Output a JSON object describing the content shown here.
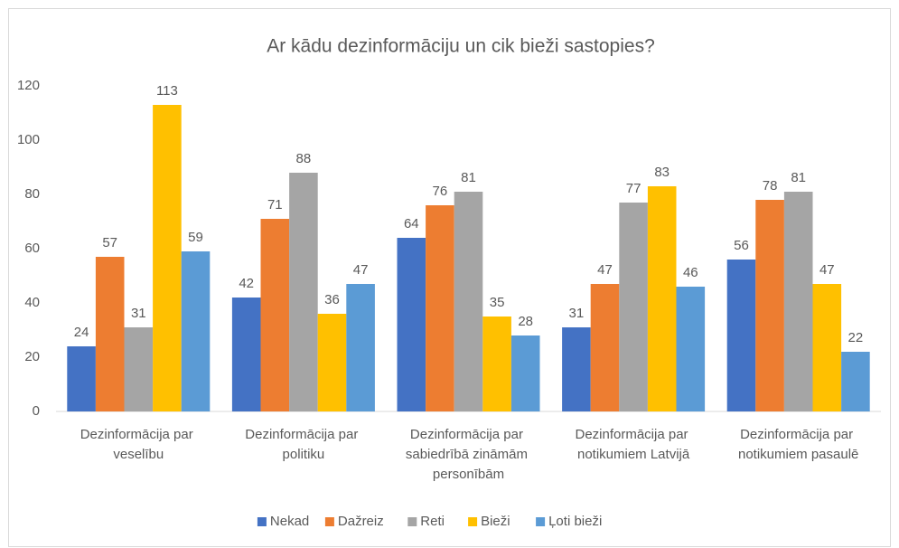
{
  "chart_data": {
    "type": "bar",
    "title": "Ar kādu dezinformāciju un cik bieži sastopies?",
    "categories": [
      "Dezinformācija par veselību",
      "Dezinformācija par politiku",
      "Dezinformācija par sabiedrībā zināmām personībām",
      "Dezinformācija par notikumiem Latvijā",
      "Dezinformācija par notikumiem pasaulē"
    ],
    "series": [
      {
        "name": "Nekad",
        "color": "#4472c4",
        "values": [
          24,
          42,
          64,
          31,
          56
        ]
      },
      {
        "name": "Dažreiz",
        "color": "#ed7d31",
        "values": [
          57,
          71,
          76,
          47,
          78
        ]
      },
      {
        "name": "Reti",
        "color": "#a5a5a5",
        "values": [
          31,
          88,
          81,
          77,
          81
        ]
      },
      {
        "name": "Bieži",
        "color": "#ffc000",
        "values": [
          113,
          36,
          35,
          83,
          47
        ]
      },
      {
        "name": "Ļoti bieži",
        "color": "#5b9bd5",
        "values": [
          59,
          47,
          28,
          46,
          22
        ]
      }
    ],
    "ylim": [
      0,
      120
    ],
    "yticks": [
      0,
      20,
      40,
      60,
      80,
      100,
      120
    ],
    "grid": false,
    "legend": "bottom"
  }
}
